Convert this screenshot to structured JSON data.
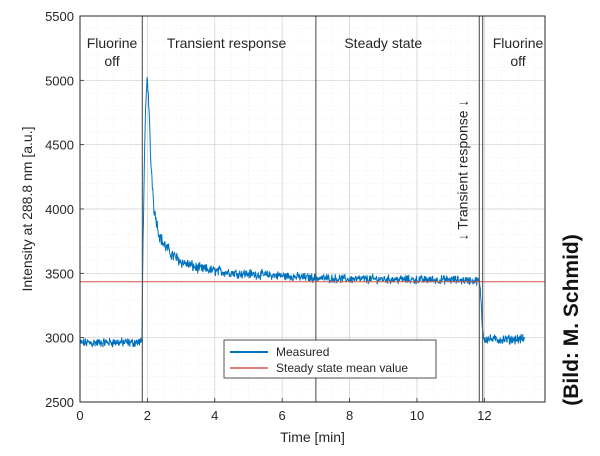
{
  "chart_data": {
    "type": "line",
    "xlabel": "Time [min]",
    "ylabel": "Intensity at 288.8 nm [a.u.]",
    "xlim": [
      0,
      13.8
    ],
    "ylim": [
      2500,
      5500
    ],
    "xticks": [
      0,
      2,
      4,
      6,
      8,
      10,
      12
    ],
    "yticks": [
      2500,
      3000,
      3500,
      4000,
      4500,
      5000,
      5500
    ],
    "grid": true,
    "legend_position": "bottom-center",
    "vertical_lines": [
      1.85,
      7.0,
      11.85,
      11.95
    ],
    "regions": [
      {
        "label": "Fluorine off",
        "lines": [
          "Fluorine",
          "off"
        ],
        "x": 0.95
      },
      {
        "label": "Transient response",
        "lines": [
          "Transient response"
        ],
        "x": 4.35
      },
      {
        "label": "Steady state",
        "lines": [
          "Steady state"
        ],
        "x": 9.0
      },
      {
        "label": "Fluorine off",
        "lines": [
          "Fluorine",
          "off"
        ],
        "x": 13.0
      }
    ],
    "rotated_annotation": {
      "text": "↓ Transient response ↓",
      "x": 11.5
    },
    "series": [
      {
        "name": "Measured",
        "color": "#0072BD",
        "x": [
          0.0,
          0.5,
          1.0,
          1.5,
          1.84,
          1.86,
          1.9,
          1.95,
          2.0,
          2.05,
          2.1,
          2.2,
          2.35,
          2.5,
          2.75,
          3.0,
          3.5,
          4.0,
          4.5,
          5.0,
          6.0,
          7.0,
          8.0,
          9.0,
          10.0,
          11.0,
          11.5,
          11.85,
          11.9,
          11.95,
          12.0,
          12.5,
          13.0,
          13.2
        ],
        "y": [
          2960,
          2960,
          2965,
          2960,
          2965,
          3550,
          4200,
          4800,
          5040,
          4750,
          4380,
          4000,
          3800,
          3720,
          3640,
          3590,
          3540,
          3520,
          3505,
          3495,
          3480,
          3465,
          3455,
          3455,
          3450,
          3450,
          3445,
          3440,
          3300,
          3050,
          2990,
          2985,
          2990,
          2990
        ],
        "noise": [
          60,
          60,
          60,
          60,
          60,
          80,
          80,
          80,
          60,
          80,
          80,
          80,
          80,
          80,
          80,
          75,
          70,
          65,
          60,
          60,
          55,
          55,
          55,
          55,
          55,
          55,
          55,
          55,
          60,
          60,
          60,
          60,
          60,
          60
        ]
      },
      {
        "name": "Steady state mean value",
        "color": "#D9534F",
        "x": [
          0,
          13.8
        ],
        "y": [
          3435,
          3435
        ]
      }
    ]
  },
  "credit": "(Bild: M. Schmid)"
}
